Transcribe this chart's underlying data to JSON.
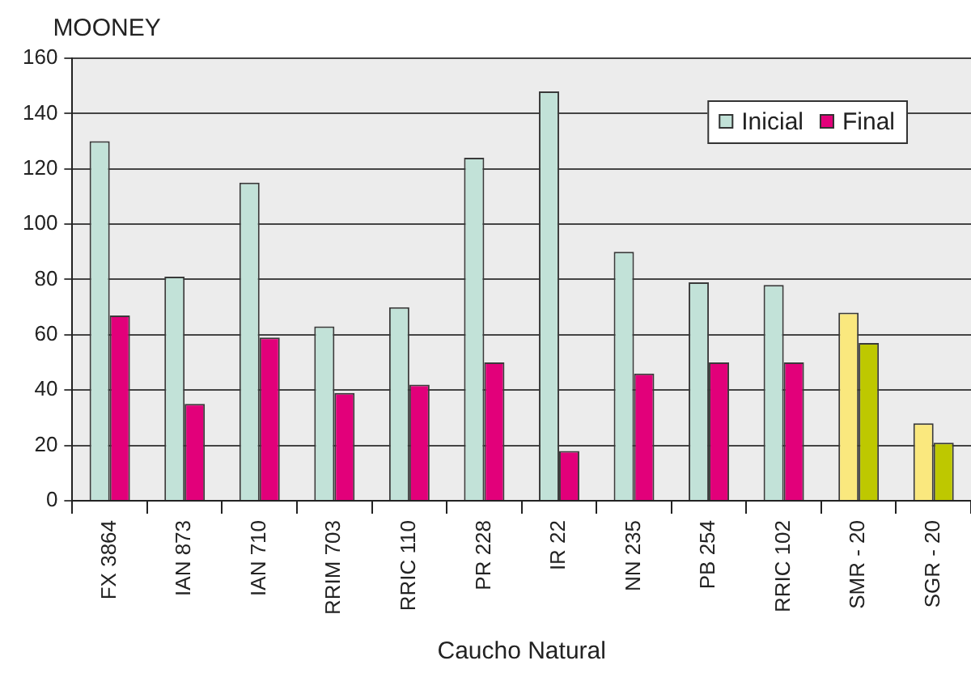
{
  "chart_data": {
    "type": "bar",
    "ylabel": "MOONEY",
    "xlabel": "Caucho Natural",
    "categories": [
      "FX 3864",
      "IAN 873",
      "IAN 710",
      "RRIM 703",
      "RRIC 110",
      "PR 228",
      "IR 22",
      "NN 235",
      "PB 254",
      "RRIC 102",
      "SMR - 20",
      "SGR - 20"
    ],
    "series": [
      {
        "name": "Inicial",
        "color": "#c2e2d8",
        "colors": [
          "#c2e2d8",
          "#c2e2d8",
          "#c2e2d8",
          "#c2e2d8",
          "#c2e2d8",
          "#c2e2d8",
          "#c2e2d8",
          "#c2e2d8",
          "#c2e2d8",
          "#c2e2d8",
          "#fae87e",
          "#fae87e"
        ],
        "values": [
          130,
          81,
          115,
          63,
          70,
          124,
          148,
          90,
          79,
          78,
          68,
          28
        ]
      },
      {
        "name": "Final",
        "color": "#e2007a",
        "colors": [
          "#e2007a",
          "#e2007a",
          "#e2007a",
          "#e2007a",
          "#e2007a",
          "#e2007a",
          "#e2007a",
          "#e2007a",
          "#e2007a",
          "#e2007a",
          "#bec800",
          "#bec800"
        ],
        "values": [
          67,
          35,
          59,
          39,
          42,
          50,
          18,
          46,
          50,
          50,
          57,
          21
        ]
      }
    ],
    "ylim": [
      0,
      160
    ],
    "yticks": [
      0,
      20,
      40,
      60,
      80,
      100,
      120,
      140,
      160
    ],
    "grid": "y",
    "legend": "top right"
  }
}
